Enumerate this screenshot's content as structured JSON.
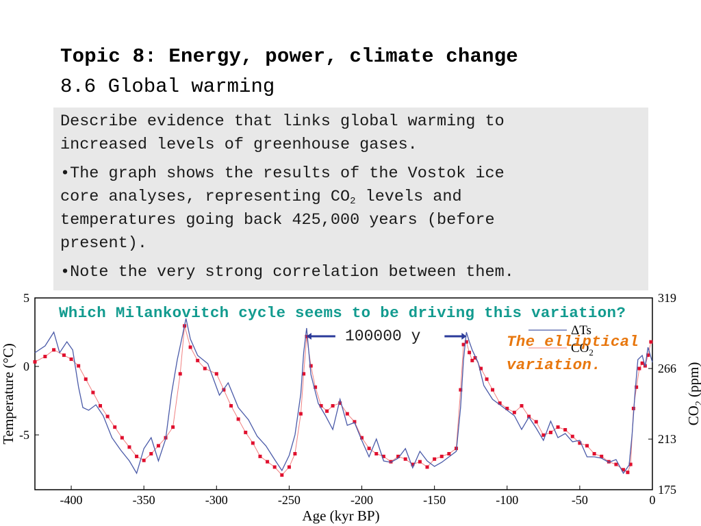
{
  "slide": {
    "title": "Topic 8: Energy, power, climate change",
    "subtitle": "8.6 Global warming",
    "paragraphs": {
      "p1_line1": "Describe evidence that links global warming to",
      "p1_line2": "increased levels of greenhouse gases.",
      "p2_line1": "•The graph shows the results of the Vostok ice",
      "p2_line2a": "core analyses, representing CO",
      "p2_line2_sub": "2",
      "p2_line2b": " levels and",
      "p2_line3": "temperatures going back 425,000 years (before",
      "p2_line4": "present).",
      "p3_line1": "•Note the very strong correlation between them."
    },
    "question": "Which Milankovitch cycle seems to be driving this variation?",
    "answer": "The elliptical variation.",
    "period_annotation": "100000 y",
    "colors": {
      "question": "#129b8f",
      "answer": "#e8770e",
      "temperature_line": "#4a5aa8",
      "co2_line": "#f08080",
      "co2_marker": "#e0102e",
      "arrow": "#2a3a9a"
    }
  },
  "chart_data": {
    "type": "line",
    "xlabel": "Age (kyr BP)",
    "ylabel_left": "Temperature (°C)",
    "ylabel_right_main": "CO",
    "ylabel_right_sub": "2",
    "ylabel_right_unit": " (ppm)",
    "xlim": [
      -425,
      0
    ],
    "ylim_left": [
      -9,
      5
    ],
    "ylim_right": [
      175,
      319
    ],
    "x_ticks": [
      "-400",
      "-350",
      "-300",
      "-250",
      "-200",
      "-150",
      "-100",
      "-50",
      "0"
    ],
    "x_tick_values": [
      -400,
      -350,
      -300,
      -250,
      -200,
      -150,
      -100,
      -50,
      0
    ],
    "left_ticks": [
      "5",
      "0",
      "-5"
    ],
    "left_tick_values": [
      5,
      0,
      -5
    ],
    "right_ticks": [
      "319",
      "266",
      "213",
      "175"
    ],
    "right_tick_values": [
      319,
      266,
      213,
      175
    ],
    "legend": {
      "temperature": "ΔTs",
      "co2_main": "CO",
      "co2_sub": "2"
    },
    "series": [
      {
        "name": "ΔTs",
        "x": [
          -425,
          -418,
          -412,
          -408,
          -403,
          -399,
          -395,
          -392,
          -388,
          -383,
          -378,
          -372,
          -366,
          -360,
          -355,
          -350,
          -345,
          -340,
          -335,
          -331,
          -327,
          -324,
          -321,
          -318,
          -313,
          -306,
          -298,
          -292,
          -285,
          -278,
          -272,
          -266,
          -260,
          -255,
          -250,
          -246,
          -242,
          -240,
          -238,
          -235,
          -230,
          -225,
          -220,
          -215,
          -210,
          -205,
          -200,
          -195,
          -190,
          -185,
          -180,
          -175,
          -170,
          -165,
          -160,
          -155,
          -150,
          -145,
          -140,
          -135,
          -132,
          -130,
          -128,
          -126,
          -124,
          -120,
          -116,
          -110,
          -105,
          -100,
          -95,
          -90,
          -85,
          -80,
          -75,
          -70,
          -65,
          -60,
          -55,
          -50,
          -45,
          -40,
          -35,
          -30,
          -25,
          -20,
          -16,
          -14,
          -12,
          -10,
          -7,
          -5,
          -3,
          0
        ],
        "y": [
          1,
          1.5,
          2.5,
          1,
          1.8,
          1.2,
          -1.5,
          -3,
          -3.2,
          -2.8,
          -3.6,
          -5.2,
          -6.1,
          -6.9,
          -7.8,
          -6,
          -5.2,
          -6.9,
          -5.3,
          -2,
          0.5,
          2,
          3.5,
          2,
          0.8,
          0.2,
          -2.1,
          -1.2,
          -3,
          -3.9,
          -5.1,
          -5.8,
          -6.8,
          -7.6,
          -6.5,
          -5,
          -2,
          1,
          2.8,
          -0.6,
          -2.7,
          -3.6,
          -4.6,
          -2.4,
          -4.3,
          -4.1,
          -5.4,
          -6.6,
          -5.3,
          -6.9,
          -7,
          -6.7,
          -6,
          -7.4,
          -6.2,
          -6.9,
          -7.3,
          -7,
          -6.6,
          -6.2,
          -3,
          0.5,
          2.5,
          1.8,
          1.2,
          0.3,
          -1.4,
          -2.4,
          -2.8,
          -3.2,
          -3.6,
          -4.6,
          -3.7,
          -4.5,
          -5.4,
          -4,
          -5.2,
          -4.9,
          -5.5,
          -5.4,
          -6.6,
          -6.6,
          -6.7,
          -7,
          -6.8,
          -7.8,
          -7.2,
          -5,
          -2,
          0.5,
          0.8,
          0,
          1.4,
          0.3
        ]
      },
      {
        "name": "CO2",
        "x": [
          -425,
          -418,
          -412,
          -405,
          -400,
          -395,
          -390,
          -385,
          -380,
          -375,
          -370,
          -365,
          -360,
          -355,
          -350,
          -345,
          -340,
          -335,
          -330,
          -325,
          -322,
          -318,
          -313,
          -308,
          -300,
          -295,
          -290,
          -285,
          -280,
          -275,
          -270,
          -265,
          -260,
          -255,
          -250,
          -246,
          -242,
          -240,
          -238,
          -235,
          -232,
          -228,
          -224,
          -220,
          -215,
          -210,
          -205,
          -200,
          -195,
          -190,
          -185,
          -180,
          -175,
          -170,
          -165,
          -160,
          -155,
          -150,
          -145,
          -140,
          -135,
          -132,
          -130,
          -128,
          -126,
          -124,
          -122,
          -118,
          -114,
          -110,
          -105,
          -100,
          -95,
          -90,
          -85,
          -80,
          -75,
          -70,
          -65,
          -60,
          -55,
          -50,
          -45,
          -40,
          -35,
          -30,
          -25,
          -20,
          -17,
          -15,
          -13,
          -11,
          -9,
          -7,
          -5,
          -3,
          -1
        ],
        "y": [
          271,
          275,
          280,
          276,
          273,
          268,
          258,
          248,
          238,
          230,
          222,
          214,
          207,
          200,
          197,
          202,
          208,
          214,
          222,
          262,
          298,
          282,
          272,
          266,
          262,
          250,
          238,
          228,
          218,
          210,
          200,
          196,
          192,
          186,
          192,
          202,
          232,
          262,
          290,
          268,
          252,
          238,
          234,
          238,
          240,
          232,
          226,
          214,
          206,
          202,
          200,
          196,
          200,
          198,
          194,
          196,
          192,
          198,
          200,
          202,
          206,
          250,
          284,
          286,
          278,
          272,
          274,
          266,
          258,
          250,
          240,
          236,
          233,
          238,
          230,
          226,
          216,
          218,
          222,
          220,
          215,
          210,
          208,
          202,
          200,
          196,
          194,
          190,
          188,
          194,
          236,
          252,
          266,
          270,
          268,
          276,
          286
        ]
      }
    ],
    "annotation_period_start": -238,
    "annotation_period_end": -128
  }
}
